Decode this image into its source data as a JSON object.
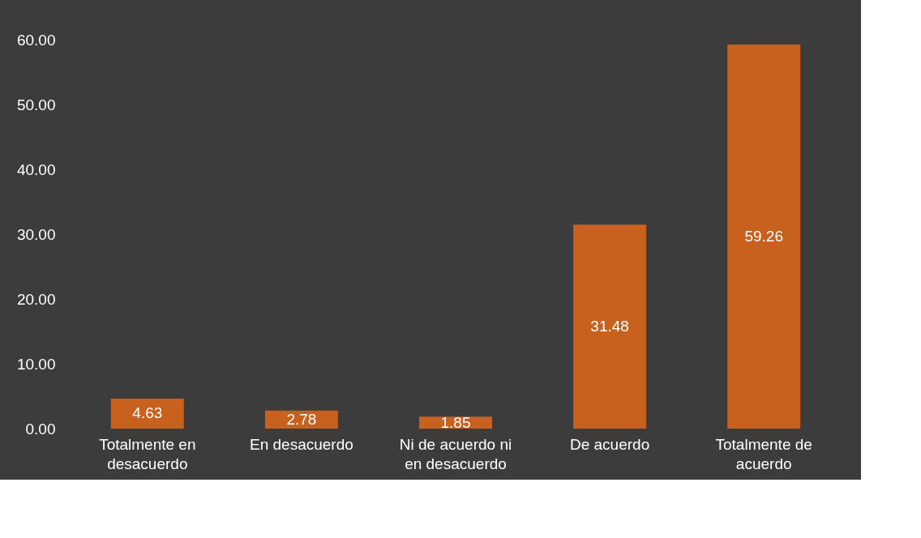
{
  "chart_data": {
    "type": "bar",
    "categories": [
      "Totalmente en desacuerdo",
      "En desacuerdo",
      "Ni de acuerdo ni en desacuerdo",
      "De acuerdo",
      "Totalmente de acuerdo"
    ],
    "values": [
      4.63,
      2.78,
      1.85,
      31.48,
      59.26
    ],
    "color": "#c8601e",
    "ylim": [
      0,
      60
    ],
    "yticks": [
      {
        "value": 0,
        "label": "0.00"
      },
      {
        "value": 10,
        "label": "10.00"
      },
      {
        "value": 20,
        "label": "20.00"
      },
      {
        "value": 30,
        "label": "30.00"
      },
      {
        "value": 40,
        "label": "40.00"
      },
      {
        "value": 50,
        "label": "50.00"
      },
      {
        "value": 60,
        "label": "60.00"
      }
    ],
    "grid": false,
    "data_labels": true
  }
}
